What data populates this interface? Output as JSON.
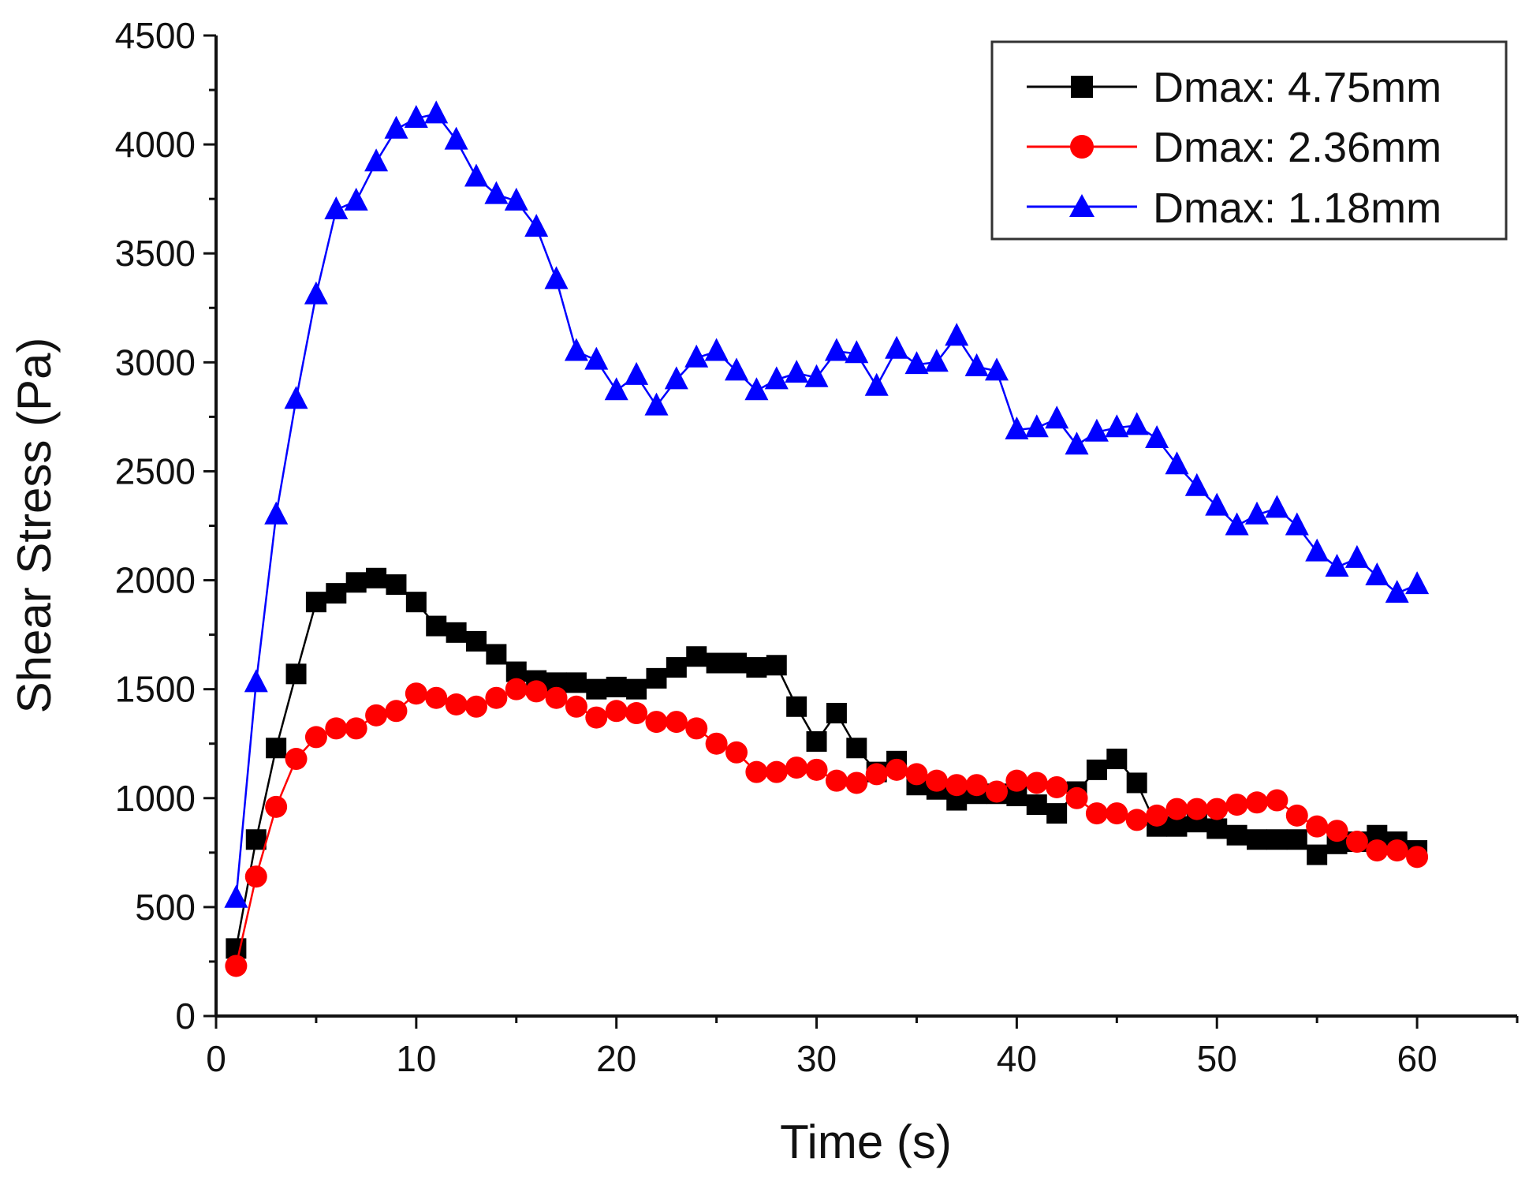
{
  "chart_data": {
    "type": "line",
    "title": "",
    "xlabel": "Time (s)",
    "ylabel": "Shear Stress (Pa)",
    "xlim": [
      0,
      65
    ],
    "ylim": [
      0,
      4500
    ],
    "xticks": [
      0,
      10,
      20,
      30,
      40,
      50,
      60
    ],
    "yticks": [
      0,
      500,
      1000,
      1500,
      2000,
      2500,
      3000,
      3500,
      4000,
      4500
    ],
    "grid": false,
    "legend_position": "top-right",
    "x": [
      1,
      2,
      3,
      4,
      5,
      6,
      7,
      8,
      9,
      10,
      11,
      12,
      13,
      14,
      15,
      16,
      17,
      18,
      19,
      20,
      21,
      22,
      23,
      24,
      25,
      26,
      27,
      28,
      29,
      30,
      31,
      32,
      33,
      34,
      35,
      36,
      37,
      38,
      39,
      40,
      41,
      42,
      43,
      44,
      45,
      46,
      47,
      48,
      49,
      50,
      51,
      52,
      53,
      54,
      55,
      56,
      57,
      58,
      59,
      60
    ],
    "series": [
      {
        "name": "Dmax: 4.75mm",
        "color": "#000000",
        "marker": "square",
        "values": [
          310,
          810,
          1230,
          1570,
          1900,
          1940,
          1990,
          2010,
          1980,
          1900,
          1790,
          1760,
          1720,
          1660,
          1580,
          1540,
          1530,
          1530,
          1500,
          1510,
          1500,
          1550,
          1600,
          1650,
          1620,
          1620,
          1600,
          1610,
          1420,
          1260,
          1390,
          1230,
          1120,
          1170,
          1060,
          1040,
          990,
          1020,
          1020,
          1010,
          970,
          930,
          1030,
          1130,
          1180,
          1070,
          870,
          870,
          890,
          860,
          830,
          810,
          810,
          810,
          740,
          790,
          800,
          830,
          800,
          760
        ]
      },
      {
        "name": "Dmax: 2.36mm",
        "color": "#ff0000",
        "marker": "circle",
        "values": [
          230,
          640,
          960,
          1180,
          1280,
          1320,
          1320,
          1380,
          1400,
          1480,
          1460,
          1430,
          1420,
          1460,
          1500,
          1490,
          1460,
          1420,
          1370,
          1400,
          1390,
          1350,
          1350,
          1320,
          1250,
          1210,
          1120,
          1120,
          1140,
          1130,
          1080,
          1070,
          1110,
          1130,
          1110,
          1080,
          1060,
          1060,
          1030,
          1080,
          1070,
          1050,
          1000,
          930,
          930,
          900,
          920,
          950,
          950,
          950,
          970,
          980,
          990,
          920,
          870,
          850,
          800,
          760,
          760,
          730
        ]
      },
      {
        "name": "Dmax: 1.18mm",
        "color": "#0000ff",
        "marker": "triangle",
        "values": [
          540,
          1530,
          2300,
          2830,
          3310,
          3700,
          3740,
          3920,
          4070,
          4120,
          4140,
          4020,
          3850,
          3770,
          3740,
          3620,
          3380,
          3050,
          3010,
          2870,
          2940,
          2800,
          2920,
          3020,
          3050,
          2960,
          2870,
          2920,
          2950,
          2930,
          3050,
          3040,
          2890,
          3060,
          2990,
          3000,
          3120,
          2980,
          2960,
          2690,
          2700,
          2740,
          2620,
          2680,
          2700,
          2710,
          2650,
          2530,
          2430,
          2340,
          2250,
          2300,
          2330,
          2250,
          2130,
          2060,
          2100,
          2020,
          1940,
          1980
        ]
      }
    ]
  }
}
